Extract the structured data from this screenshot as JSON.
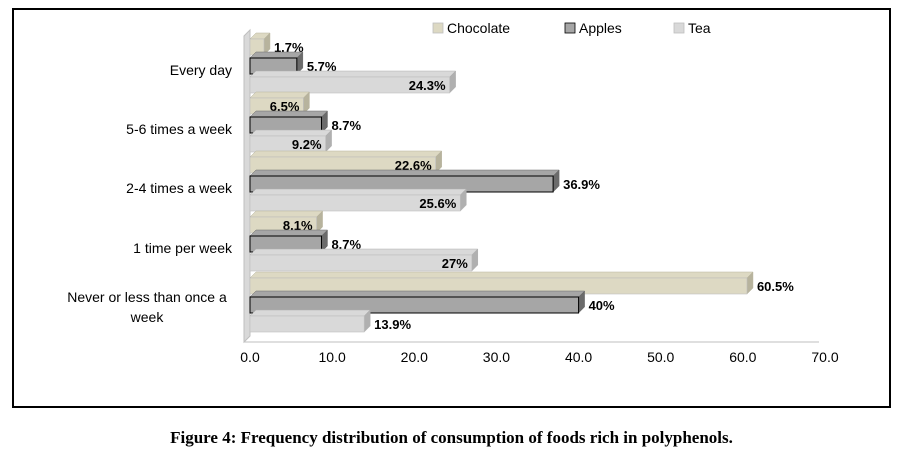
{
  "caption": "Figure 4: Frequency distribution of consumption of foods rich in polyphenols.",
  "chart_data": {
    "type": "bar",
    "orientation": "horizontal",
    "categories": [
      "Every day",
      "5-6 times a week",
      "2-4 times a week",
      "1 time per week",
      "Never or less than once a week"
    ],
    "series": [
      {
        "name": "Chocolate",
        "values": [
          1.7,
          6.5,
          22.6,
          8.1,
          60.5
        ],
        "labels": [
          "1.7%",
          "6.5%",
          "22.6%",
          "8.1%",
          "60.5%"
        ],
        "color": "#ddd9c3"
      },
      {
        "name": "Apples",
        "values": [
          5.7,
          8.7,
          36.9,
          8.7,
          40
        ],
        "labels": [
          "5.7%",
          "8.7%",
          "36.9%",
          "8.7%",
          "40%"
        ],
        "color": "#a6a6a6"
      },
      {
        "name": "Tea",
        "values": [
          24.3,
          9.2,
          25.6,
          27,
          13.9
        ],
        "labels": [
          "24.3%",
          "9.2%",
          "25.6%",
          "27%",
          "13.9%"
        ],
        "color": "#d9d9d9"
      }
    ],
    "xlim": [
      0,
      70
    ],
    "xticks": [
      "0.0",
      "10.0",
      "20.0",
      "30.0",
      "40.0",
      "50.0",
      "60.0",
      "70.0"
    ],
    "legend_position": "top",
    "grid": false
  }
}
